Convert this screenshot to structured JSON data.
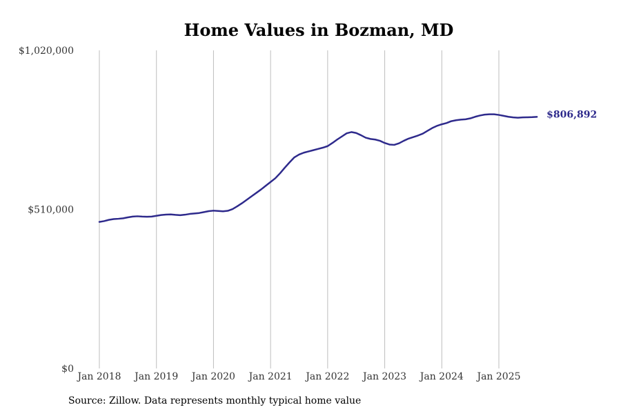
{
  "chart_data": {
    "type": "line",
    "title": "Home Values in Bozman, MD",
    "xlabel": "",
    "ylabel": "",
    "ylim": [
      0,
      1020000
    ],
    "y_ticks": [
      {
        "value": 0,
        "label": "$0"
      },
      {
        "value": 510000,
        "label": "$510,000"
      },
      {
        "value": 1020000,
        "label": "$1,020,000"
      }
    ],
    "x_ticks": [
      {
        "value": 0,
        "label": "Jan 2018"
      },
      {
        "value": 12,
        "label": "Jan 2019"
      },
      {
        "value": 24,
        "label": "Jan 2020"
      },
      {
        "value": 36,
        "label": "Jan 2021"
      },
      {
        "value": 48,
        "label": "Jan 2022"
      },
      {
        "value": 60,
        "label": "Jan 2023"
      },
      {
        "value": 72,
        "label": "Jan 2024"
      },
      {
        "value": 84,
        "label": "Jan 2025"
      }
    ],
    "grid": "vertical",
    "line_color": "#2e2a8c",
    "end_label": "$806,892",
    "series": [
      {
        "name": "Typical home value",
        "x": [
          0,
          1,
          2,
          3,
          4,
          5,
          6,
          7,
          8,
          9,
          10,
          11,
          12,
          13,
          14,
          15,
          16,
          17,
          18,
          19,
          20,
          21,
          22,
          23,
          24,
          25,
          26,
          27,
          28,
          29,
          30,
          31,
          32,
          33,
          34,
          35,
          36,
          37,
          38,
          39,
          40,
          41,
          42,
          43,
          44,
          45,
          46,
          47,
          48,
          49,
          50,
          51,
          52,
          53,
          54,
          55,
          56,
          57,
          58,
          59,
          60,
          61,
          62,
          63,
          64,
          65,
          66,
          67,
          68,
          69,
          70,
          71,
          72,
          73,
          74,
          75,
          76,
          77,
          78,
          79,
          80,
          81,
          82,
          83,
          84,
          85,
          86,
          87,
          88,
          89,
          90,
          91,
          92
        ],
        "values": [
          470000,
          472500,
          476500,
          479000,
          480000,
          481500,
          484500,
          487000,
          488000,
          487000,
          486500,
          487000,
          489500,
          492000,
          493500,
          494000,
          492500,
          491500,
          493000,
          495500,
          497000,
          498500,
          501500,
          504500,
          506000,
          505000,
          504000,
          505500,
          511000,
          520000,
          530000,
          541000,
          552000,
          563000,
          574000,
          586000,
          598000,
          610000,
          626000,
          644000,
          661000,
          677000,
          686000,
          692000,
          696000,
          700000,
          704000,
          708000,
          713000,
          723000,
          734000,
          744000,
          754000,
          758000,
          755000,
          748000,
          740000,
          736000,
          734000,
          730000,
          723000,
          718000,
          717000,
          722000,
          730000,
          737000,
          742000,
          747000,
          753000,
          762000,
          771000,
          778000,
          783000,
          787000,
          793000,
          796000,
          798000,
          799000,
          802000,
          807000,
          811000,
          814000,
          815000,
          815000,
          813000,
          810000,
          807000,
          805000,
          804000,
          805000,
          805500,
          806000,
          806892
        ]
      }
    ]
  },
  "source_note": "Source: Zillow. Data represents monthly typical home value"
}
